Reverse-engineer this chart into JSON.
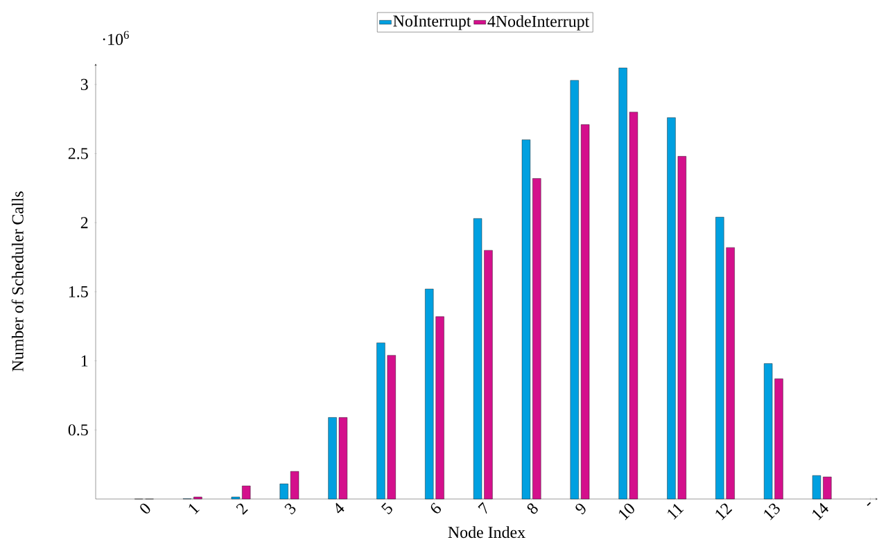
{
  "chart_data": {
    "type": "bar",
    "xlabel": "Node Index",
    "ylabel": "Number of Scheduler Calls",
    "categories": [
      "0",
      "1",
      "2",
      "3",
      "4",
      "5",
      "6",
      "7",
      "8",
      "9",
      "10",
      "11",
      "12",
      "13",
      "14",
      "-"
    ],
    "series": [
      {
        "name": "NoInterrupt",
        "color": "#00a0e0",
        "values": [
          0,
          0.002,
          0.015,
          0.11,
          0.59,
          1.13,
          1.52,
          2.03,
          2.6,
          3.03,
          3.12,
          2.76,
          2.04,
          0.98,
          0.17,
          null
        ]
      },
      {
        "name": "4NodeInterrupt",
        "color": "#d4108c",
        "values": [
          0,
          0.015,
          0.095,
          0.2,
          0.59,
          1.04,
          1.32,
          1.8,
          2.32,
          2.71,
          2.8,
          2.48,
          1.82,
          0.87,
          0.16,
          null
        ]
      }
    ],
    "ylim": [
      0,
      3.15
    ],
    "yticks": [
      0.5,
      1,
      1.5,
      2,
      2.5,
      3
    ],
    "annotations": [
      "·10$^{6}$"
    ],
    "legend": "top",
    "grid": false
  }
}
